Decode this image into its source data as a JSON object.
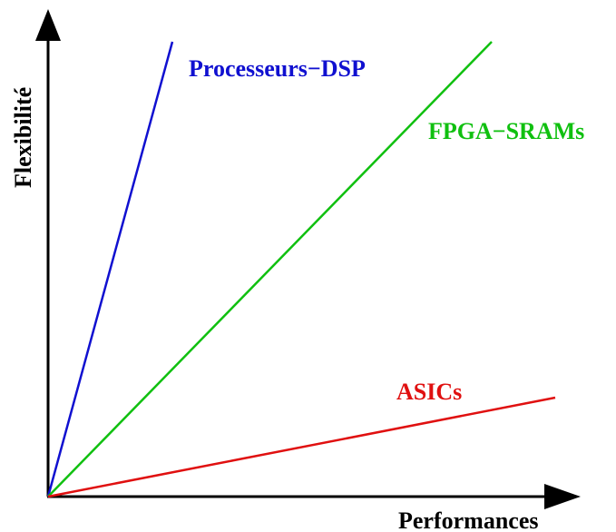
{
  "axes": {
    "x_label": "Performances",
    "y_label": "Flexibilité",
    "axis_color": "#000000"
  },
  "lines": [
    {
      "id": "processeurs-dsp",
      "label": "Processeurs−DSP",
      "color": "#1010d0"
    },
    {
      "id": "fpga-srams",
      "label": "FPGA−SRAMs",
      "color": "#10c010"
    },
    {
      "id": "asics",
      "label": "ASICs",
      "color": "#e01010"
    }
  ]
}
